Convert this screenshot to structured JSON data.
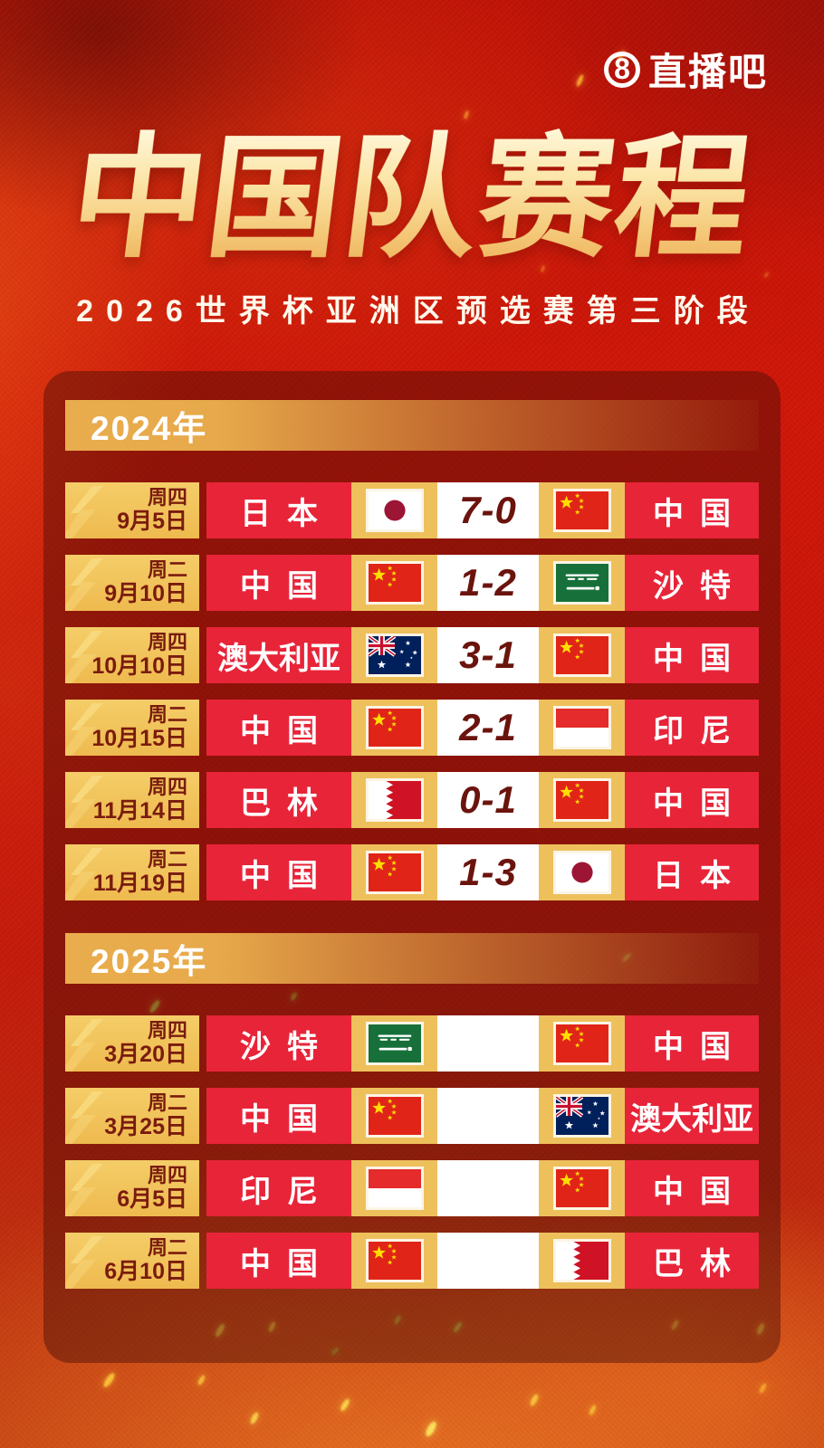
{
  "brand": {
    "logo_badge": "8",
    "logo_text": "直播吧"
  },
  "header": {
    "title": "中国队赛程",
    "subtitle": "2026世界杯亚洲区预选赛第三阶段"
  },
  "sections": [
    {
      "year_label": "2024年",
      "matches": [
        {
          "weekday": "周四",
          "date": "9月5日",
          "home": {
            "name": "日本",
            "flag": "japan"
          },
          "score": "7-0",
          "away": {
            "name": "中国",
            "flag": "china"
          }
        },
        {
          "weekday": "周二",
          "date": "9月10日",
          "home": {
            "name": "中国",
            "flag": "china"
          },
          "score": "1-2",
          "away": {
            "name": "沙特",
            "flag": "saudi"
          }
        },
        {
          "weekday": "周四",
          "date": "10月10日",
          "home": {
            "name": "澳大利亚",
            "flag": "australia"
          },
          "score": "3-1",
          "away": {
            "name": "中国",
            "flag": "china"
          }
        },
        {
          "weekday": "周二",
          "date": "10月15日",
          "home": {
            "name": "中国",
            "flag": "china"
          },
          "score": "2-1",
          "away": {
            "name": "印尼",
            "flag": "indonesia"
          }
        },
        {
          "weekday": "周四",
          "date": "11月14日",
          "home": {
            "name": "巴林",
            "flag": "bahrain"
          },
          "score": "0-1",
          "away": {
            "name": "中国",
            "flag": "china"
          }
        },
        {
          "weekday": "周二",
          "date": "11月19日",
          "home": {
            "name": "中国",
            "flag": "china"
          },
          "score": "1-3",
          "away": {
            "name": "日本",
            "flag": "japan"
          }
        }
      ]
    },
    {
      "year_label": "2025年",
      "matches": [
        {
          "weekday": "周四",
          "date": "3月20日",
          "home": {
            "name": "沙特",
            "flag": "saudi"
          },
          "score": "",
          "away": {
            "name": "中国",
            "flag": "china"
          }
        },
        {
          "weekday": "周二",
          "date": "3月25日",
          "home": {
            "name": "中国",
            "flag": "china"
          },
          "score": "",
          "away": {
            "name": "澳大利亚",
            "flag": "australia"
          }
        },
        {
          "weekday": "周四",
          "date": "6月5日",
          "home": {
            "name": "印尼",
            "flag": "indonesia"
          },
          "score": "",
          "away": {
            "name": "中国",
            "flag": "china"
          }
        },
        {
          "weekday": "周二",
          "date": "6月10日",
          "home": {
            "name": "中国",
            "flag": "china"
          },
          "score": "",
          "away": {
            "name": "巴林",
            "flag": "bahrain"
          }
        }
      ]
    }
  ],
  "colors": {
    "background_red": "#cc1608",
    "panel_maroon": "#480d07",
    "team_red": "#e82439",
    "cell_gold": "#eec05c",
    "badge_gold": "#f2c661",
    "score_text": "#6b130d",
    "title_gold": "#f5cc7e"
  }
}
